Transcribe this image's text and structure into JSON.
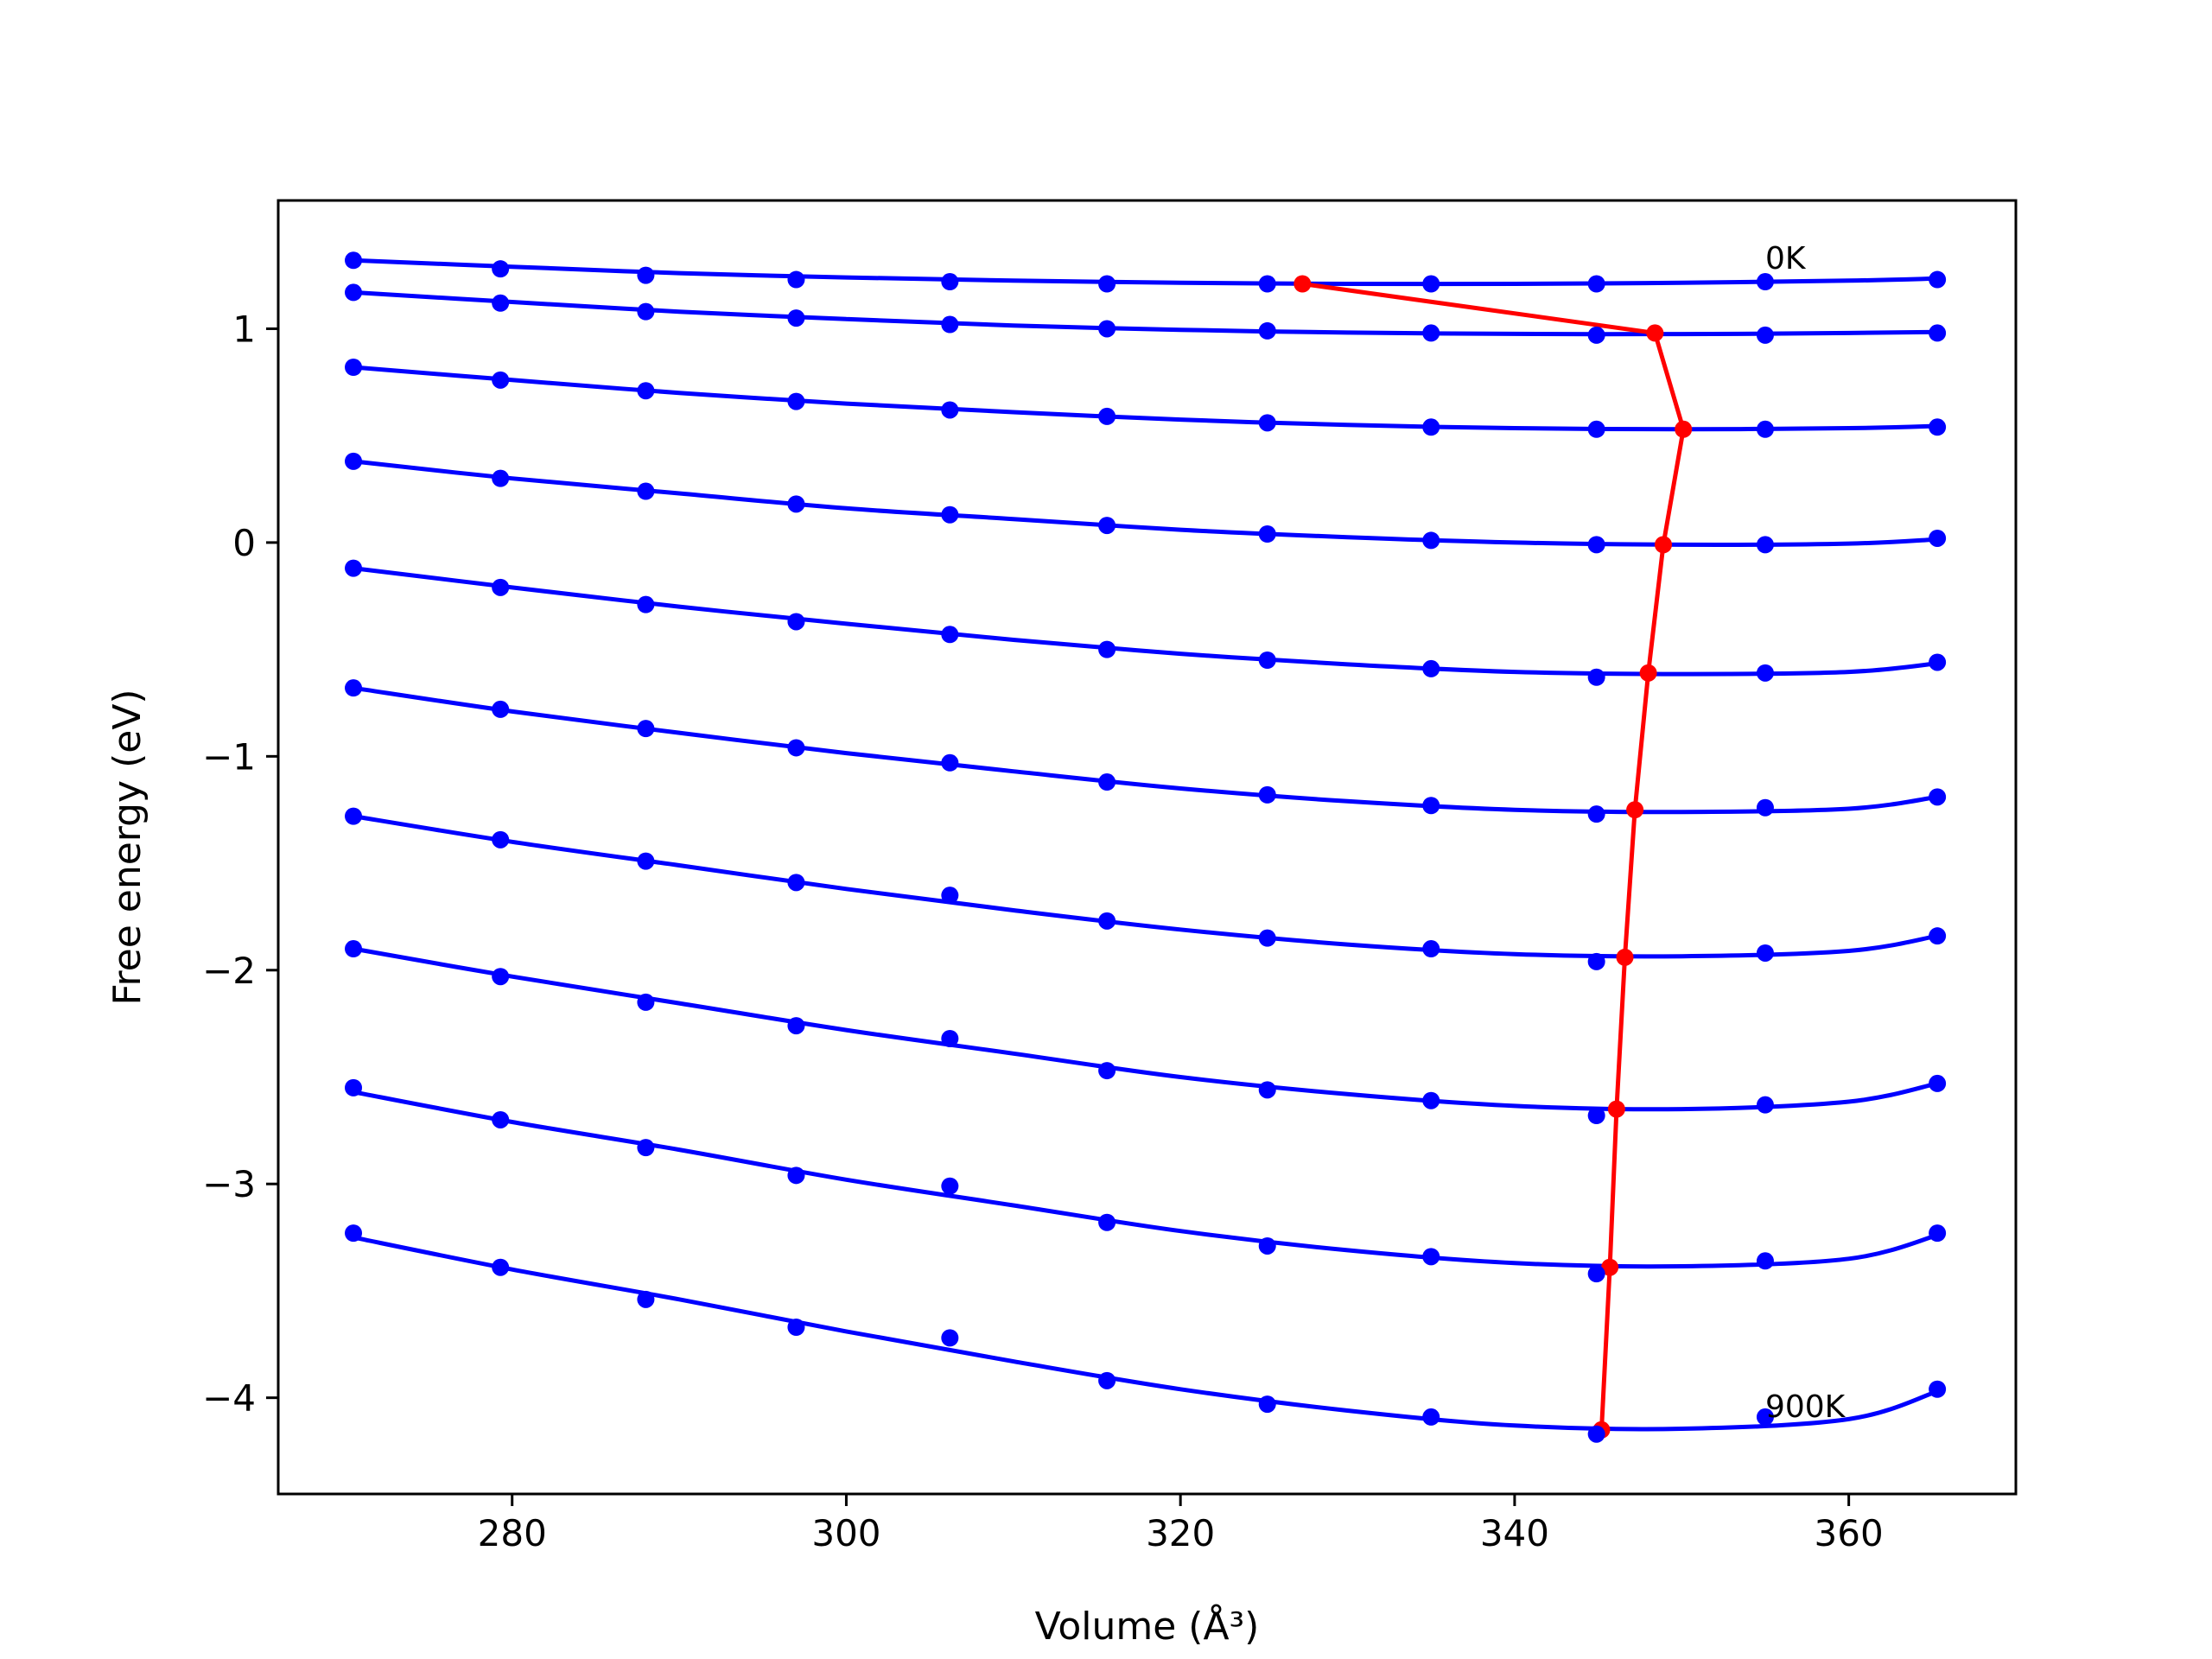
{
  "chart_data": {
    "type": "line",
    "xlabel": "Volume (Å³)",
    "ylabel": "Free energy (eV)",
    "xlim": [
      266,
      370
    ],
    "ylim": [
      -4.45,
      1.6
    ],
    "xticks": [
      280,
      300,
      320,
      340,
      360
    ],
    "yticks": [
      -4,
      -3,
      -2,
      -1,
      0,
      1
    ],
    "xtick_labels": [
      "280",
      "300",
      "320",
      "340",
      "360"
    ],
    "ytick_labels": [
      "−4",
      "−3",
      "−2",
      "−1",
      "0",
      "1"
    ],
    "grid": false,
    "annotations": [
      {
        "text": "0K",
        "x": 355,
        "y": 1.28
      },
      {
        "text": "900K",
        "x": 355,
        "y": -4.09
      }
    ],
    "x": [
      270.5,
      279.3,
      288.0,
      297.0,
      306.2,
      315.6,
      325.2,
      335.0,
      344.9,
      355.0,
      365.3
    ],
    "scatter_color": "#0000ff",
    "fit_color": "#0000ff",
    "minima_color": "#ff0000",
    "series": [
      {
        "values": [
          1.32,
          1.28,
          1.25,
          1.23,
          1.22,
          1.21,
          1.21,
          1.21,
          1.21,
          1.22,
          1.23
        ]
      },
      {
        "values": [
          1.17,
          1.12,
          1.08,
          1.05,
          1.02,
          1.0,
          0.99,
          0.98,
          0.97,
          0.97,
          0.98
        ]
      },
      {
        "values": [
          0.82,
          0.76,
          0.71,
          0.66,
          0.62,
          0.59,
          0.56,
          0.54,
          0.53,
          0.53,
          0.54
        ]
      },
      {
        "values": [
          0.38,
          0.3,
          0.24,
          0.18,
          0.13,
          0.08,
          0.04,
          0.01,
          -0.01,
          -0.01,
          0.02
        ]
      },
      {
        "values": [
          -0.12,
          -0.21,
          -0.29,
          -0.37,
          -0.43,
          -0.5,
          -0.55,
          -0.59,
          -0.63,
          -0.61,
          -0.56
        ]
      },
      {
        "values": [
          -0.68,
          -0.78,
          -0.87,
          -0.96,
          -1.03,
          -1.12,
          -1.18,
          -1.23,
          -1.27,
          -1.24,
          -1.19
        ]
      },
      {
        "values": [
          -1.28,
          -1.39,
          -1.49,
          -1.59,
          -1.65,
          -1.77,
          -1.85,
          -1.9,
          -1.96,
          -1.92,
          -1.84
        ]
      },
      {
        "values": [
          -1.9,
          -2.03,
          -2.15,
          -2.26,
          -2.32,
          -2.47,
          -2.56,
          -2.61,
          -2.68,
          -2.63,
          -2.53
        ]
      },
      {
        "values": [
          -2.55,
          -2.7,
          -2.83,
          -2.96,
          -3.01,
          -3.18,
          -3.29,
          -3.34,
          -3.42,
          -3.36,
          -3.23
        ]
      },
      {
        "values": [
          -3.23,
          -3.39,
          -3.54,
          -3.67,
          -3.72,
          -3.92,
          -4.03,
          -4.09,
          -4.17,
          -4.09,
          -3.96
        ]
      }
    ],
    "fits": [
      {
        "x": [
          270.5,
          280,
          290,
          300,
          310,
          320,
          330,
          340,
          350,
          360,
          365.3
        ],
        "y": [
          1.32,
          1.29,
          1.26,
          1.24,
          1.225,
          1.215,
          1.21,
          1.21,
          1.215,
          1.225,
          1.235
        ]
      },
      {
        "x": [
          270.5,
          280,
          290,
          300,
          310,
          320,
          330,
          340,
          350,
          360,
          365.3
        ],
        "y": [
          1.17,
          1.125,
          1.08,
          1.045,
          1.015,
          0.995,
          0.982,
          0.976,
          0.975,
          0.98,
          0.985
        ]
      },
      {
        "x": [
          270.5,
          280,
          290,
          300,
          310,
          320,
          330,
          340,
          350,
          360,
          365.3
        ],
        "y": [
          0.82,
          0.76,
          0.7,
          0.65,
          0.61,
          0.575,
          0.55,
          0.535,
          0.53,
          0.535,
          0.545
        ]
      },
      {
        "x": [
          270.5,
          280,
          290,
          300,
          310,
          320,
          330,
          340,
          350,
          360,
          365.3
        ],
        "y": [
          0.38,
          0.3,
          0.23,
          0.16,
          0.11,
          0.06,
          0.025,
          0.0,
          -0.01,
          -0.005,
          0.015
        ]
      },
      {
        "x": [
          270.5,
          280,
          290,
          300,
          310,
          320,
          330,
          340,
          350,
          360,
          365.3
        ],
        "y": [
          -0.12,
          -0.21,
          -0.3,
          -0.38,
          -0.455,
          -0.52,
          -0.57,
          -0.605,
          -0.615,
          -0.605,
          -0.565
        ]
      },
      {
        "x": [
          270.5,
          280,
          290,
          300,
          310,
          320,
          330,
          340,
          350,
          360,
          365.3
        ],
        "y": [
          -0.68,
          -0.79,
          -0.89,
          -0.985,
          -1.07,
          -1.15,
          -1.21,
          -1.25,
          -1.26,
          -1.245,
          -1.19
        ]
      },
      {
        "x": [
          270.5,
          280,
          290,
          300,
          310,
          320,
          330,
          340,
          350,
          360,
          365.3
        ],
        "y": [
          -1.28,
          -1.4,
          -1.51,
          -1.62,
          -1.72,
          -1.81,
          -1.88,
          -1.925,
          -1.935,
          -1.91,
          -1.84
        ]
      },
      {
        "x": [
          270.5,
          280,
          290,
          300,
          310,
          320,
          330,
          340,
          350,
          360,
          365.3
        ],
        "y": [
          -1.9,
          -2.03,
          -2.155,
          -2.28,
          -2.39,
          -2.5,
          -2.58,
          -2.635,
          -2.65,
          -2.615,
          -2.53
        ]
      },
      {
        "x": [
          270.5,
          280,
          290,
          300,
          310,
          320,
          330,
          340,
          350,
          360,
          365.3
        ],
        "y": [
          -2.57,
          -2.71,
          -2.84,
          -2.98,
          -3.1,
          -3.22,
          -3.31,
          -3.37,
          -3.385,
          -3.35,
          -3.24
        ]
      },
      {
        "x": [
          270.5,
          280,
          290,
          300,
          310,
          320,
          330,
          340,
          350,
          360,
          365.3
        ],
        "y": [
          -3.25,
          -3.4,
          -3.54,
          -3.69,
          -3.83,
          -3.96,
          -4.06,
          -4.13,
          -4.145,
          -4.1,
          -3.97
        ]
      }
    ],
    "minima": {
      "x": [
        327.3,
        348.4,
        350.1,
        348.9,
        348.0,
        347.2,
        346.6,
        346.1,
        345.7,
        345.2
      ],
      "y": [
        1.21,
        0.98,
        0.53,
        -0.01,
        -0.61,
        -1.25,
        -1.94,
        -2.65,
        -3.39,
        -4.15
      ]
    }
  }
}
